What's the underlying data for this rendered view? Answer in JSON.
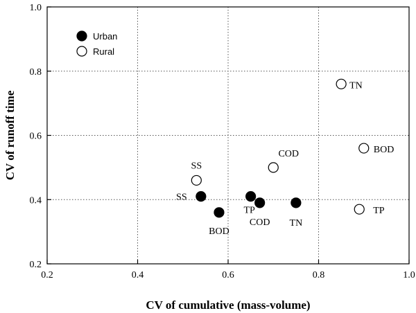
{
  "chart_data": {
    "type": "scatter",
    "xlabel": "CV of cumulative (mass-volume)",
    "ylabel": "CV of runoff time",
    "xlim": [
      0.2,
      1.0
    ],
    "ylim": [
      0.2,
      1.0
    ],
    "xticks": [
      "0.2",
      "0.4",
      "0.6",
      "0.8",
      "1.0"
    ],
    "yticks": [
      "0.2",
      "0.4",
      "0.6",
      "0.8",
      "1.0"
    ],
    "grid": true,
    "legend_position": "top-left",
    "series": [
      {
        "name": "Urban",
        "marker": "filled-circle",
        "color": "#000000",
        "points": [
          {
            "label": "SS",
            "x": 0.54,
            "y": 0.41
          },
          {
            "label": "BOD",
            "x": 0.58,
            "y": 0.36
          },
          {
            "label": "TP",
            "x": 0.65,
            "y": 0.41
          },
          {
            "label": "COD",
            "x": 0.67,
            "y": 0.39
          },
          {
            "label": "TN",
            "x": 0.75,
            "y": 0.39
          }
        ]
      },
      {
        "name": "Rural",
        "marker": "open-circle",
        "color": "#ffffff",
        "points": [
          {
            "label": "SS",
            "x": 0.53,
            "y": 0.46
          },
          {
            "label": "COD",
            "x": 0.7,
            "y": 0.5
          },
          {
            "label": "TN",
            "x": 0.85,
            "y": 0.76
          },
          {
            "label": "BOD",
            "x": 0.9,
            "y": 0.56
          },
          {
            "label": "TP",
            "x": 0.89,
            "y": 0.37
          }
        ]
      }
    ]
  }
}
